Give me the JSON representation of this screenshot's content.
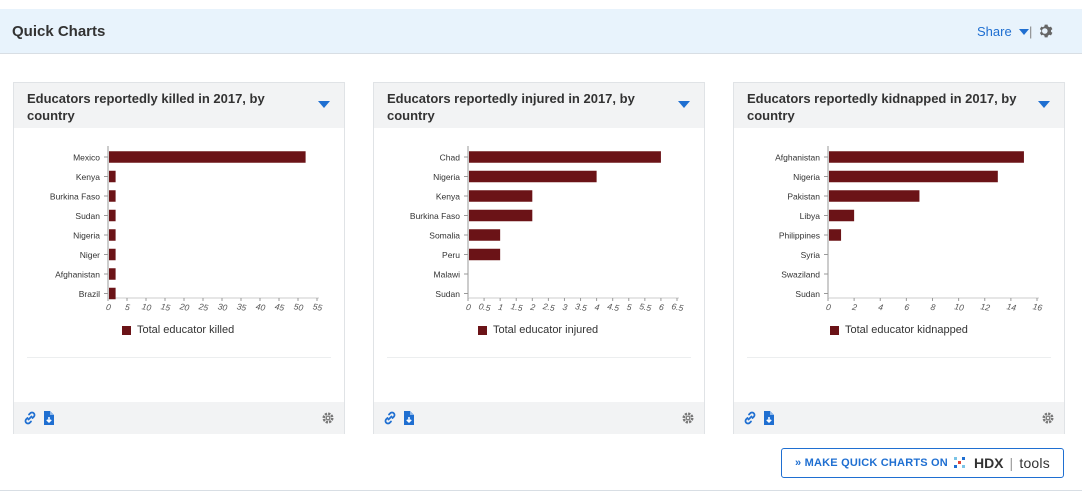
{
  "header": {
    "title": "Quick Charts",
    "share_label": "Share",
    "separator": "|"
  },
  "make_button": {
    "prefix": "» MAKE QUICK CHARTS ON",
    "brand": "HDX",
    "separator": "|",
    "suffix": "tools"
  },
  "colors": {
    "bar": "#6b1317",
    "accent": "#1f6fd1"
  },
  "cards": [
    {
      "title": "Educators reportedly killed in 2017, by country",
      "legend": "Total educator killed"
    },
    {
      "title": "Educators reportedly injured in 2017, by country",
      "legend": "Total educator injured"
    },
    {
      "title": "Educators reportedly kidnapped in 2017, by country",
      "legend": "Total educator kidnapped"
    }
  ],
  "chart_data": [
    {
      "type": "bar",
      "orientation": "horizontal",
      "categories": [
        "Mexico",
        "Kenya",
        "Burkina Faso",
        "Sudan",
        "Nigeria",
        "Niger",
        "Afghanistan",
        "Brazil"
      ],
      "values": [
        52,
        2,
        2,
        2,
        2,
        2,
        2,
        2
      ],
      "xticks": [
        "0",
        "5",
        "10",
        "15",
        "20",
        "25",
        "30",
        "35",
        "40",
        "45",
        "50",
        "55"
      ],
      "xlim": [
        0,
        55
      ],
      "series_name": "Total educator killed"
    },
    {
      "type": "bar",
      "orientation": "horizontal",
      "categories": [
        "Chad",
        "Nigeria",
        "Kenya",
        "Burkina Faso",
        "Somalia",
        "Peru",
        "Malawi",
        "Sudan"
      ],
      "values": [
        6,
        4,
        2,
        2,
        1,
        1,
        0,
        0
      ],
      "xticks": [
        "0",
        "0.5",
        "1",
        "1.5",
        "2",
        "2.5",
        "3",
        "3.5",
        "4",
        "4.5",
        "5",
        "5.5",
        "6",
        "6.5"
      ],
      "xlim": [
        0,
        6.5
      ],
      "series_name": "Total educator injured"
    },
    {
      "type": "bar",
      "orientation": "horizontal",
      "categories": [
        "Afghanistan",
        "Nigeria",
        "Pakistan",
        "Libya",
        "Philippines",
        "Syria",
        "Swaziland",
        "Sudan"
      ],
      "values": [
        15,
        13,
        7,
        2,
        1,
        0,
        0,
        0
      ],
      "xticks": [
        "0",
        "2",
        "4",
        "6",
        "8",
        "10",
        "12",
        "14",
        "16"
      ],
      "xlim": [
        0,
        16
      ],
      "series_name": "Total educator kidnapped"
    }
  ]
}
